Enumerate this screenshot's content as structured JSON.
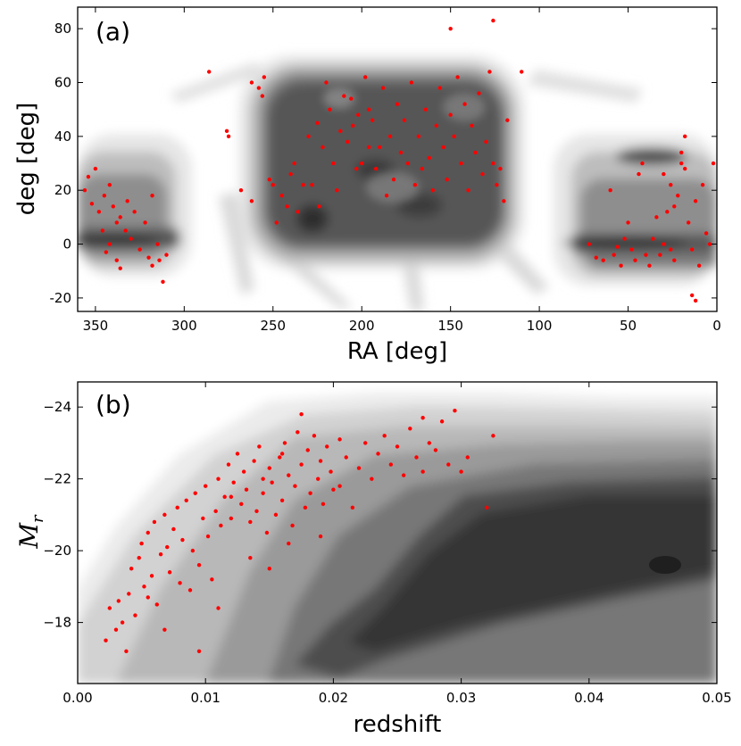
{
  "chart_data": [
    {
      "type": "scatter",
      "panel_label": "(a)",
      "xlabel": "RA [deg]",
      "ylabel": "deg [deg]",
      "xlim": [
        360,
        0
      ],
      "ylim": [
        -25,
        88
      ],
      "xticks": [
        350,
        300,
        250,
        200,
        150,
        100,
        50,
        0
      ],
      "yticks": [
        -20,
        0,
        20,
        40,
        60,
        80
      ],
      "background": "grayscale filled density contours of survey galaxies",
      "points_color": "#ff0000",
      "points": [
        [
          352,
          15
        ],
        [
          348,
          12
        ],
        [
          345,
          18
        ],
        [
          342,
          22
        ],
        [
          340,
          14
        ],
        [
          338,
          8
        ],
        [
          336,
          10
        ],
        [
          333,
          5
        ],
        [
          330,
          2
        ],
        [
          325,
          -2
        ],
        [
          320,
          -5
        ],
        [
          318,
          -8
        ],
        [
          315,
          0
        ],
        [
          312,
          -14
        ],
        [
          356,
          20
        ],
        [
          354,
          25
        ],
        [
          350,
          28
        ],
        [
          346,
          5
        ],
        [
          344,
          -3
        ],
        [
          342,
          0
        ],
        [
          338,
          -6
        ],
        [
          336,
          -9
        ],
        [
          332,
          16
        ],
        [
          328,
          12
        ],
        [
          322,
          8
        ],
        [
          318,
          18
        ],
        [
          314,
          -6
        ],
        [
          310,
          -4
        ],
        [
          286,
          64
        ],
        [
          276,
          42
        ],
        [
          275,
          40
        ],
        [
          262,
          60
        ],
        [
          258,
          58
        ],
        [
          256,
          55
        ],
        [
          255,
          62
        ],
        [
          268,
          20
        ],
        [
          262,
          16
        ],
        [
          250,
          22
        ],
        [
          245,
          18
        ],
        [
          240,
          26
        ],
        [
          236,
          12
        ],
        [
          233,
          22
        ],
        [
          230,
          40
        ],
        [
          225,
          45
        ],
        [
          220,
          60
        ],
        [
          218,
          50
        ],
        [
          216,
          30
        ],
        [
          214,
          20
        ],
        [
          212,
          42
        ],
        [
          210,
          55
        ],
        [
          208,
          38
        ],
        [
          205,
          44
        ],
        [
          203,
          28
        ],
        [
          200,
          30
        ],
        [
          198,
          62
        ],
        [
          196,
          50
        ],
        [
          194,
          46
        ],
        [
          192,
          28
        ],
        [
          190,
          36
        ],
        [
          188,
          58
        ],
        [
          186,
          18
        ],
        [
          184,
          40
        ],
        [
          182,
          24
        ],
        [
          180,
          52
        ],
        [
          178,
          34
        ],
        [
          176,
          46
        ],
        [
          174,
          30
        ],
        [
          172,
          60
        ],
        [
          170,
          22
        ],
        [
          168,
          40
        ],
        [
          166,
          28
        ],
        [
          164,
          50
        ],
        [
          162,
          32
        ],
        [
          160,
          20
        ],
        [
          158,
          44
        ],
        [
          156,
          58
        ],
        [
          154,
          36
        ],
        [
          152,
          24
        ],
        [
          150,
          48
        ],
        [
          148,
          40
        ],
        [
          146,
          62
        ],
        [
          144,
          30
        ],
        [
          142,
          52
        ],
        [
          140,
          20
        ],
        [
          138,
          44
        ],
        [
          136,
          34
        ],
        [
          134,
          56
        ],
        [
          132,
          26
        ],
        [
          130,
          38
        ],
        [
          128,
          64
        ],
        [
          126,
          30
        ],
        [
          124,
          22
        ],
        [
          122,
          28
        ],
        [
          120,
          16
        ],
        [
          118,
          46
        ],
        [
          150,
          80
        ],
        [
          126,
          83
        ],
        [
          110,
          64
        ],
        [
          248,
          8
        ],
        [
          252,
          24
        ],
        [
          242,
          14
        ],
        [
          238,
          30
        ],
        [
          228,
          22
        ],
        [
          224,
          14
        ],
        [
          222,
          36
        ],
        [
          206,
          54
        ],
        [
          202,
          48
        ],
        [
          196,
          36
        ],
        [
          60,
          20
        ],
        [
          56,
          -1
        ],
        [
          52,
          2
        ],
        [
          50,
          8
        ],
        [
          48,
          -2
        ],
        [
          46,
          -6
        ],
        [
          44,
          26
        ],
        [
          42,
          30
        ],
        [
          40,
          -4
        ],
        [
          38,
          -8
        ],
        [
          36,
          2
        ],
        [
          34,
          10
        ],
        [
          32,
          -4
        ],
        [
          30,
          0
        ],
        [
          28,
          12
        ],
        [
          26,
          -2
        ],
        [
          24,
          -6
        ],
        [
          22,
          18
        ],
        [
          20,
          34
        ],
        [
          18,
          40
        ],
        [
          16,
          8
        ],
        [
          14,
          -2
        ],
        [
          12,
          16
        ],
        [
          10,
          -8
        ],
        [
          8,
          22
        ],
        [
          6,
          4
        ],
        [
          4,
          0
        ],
        [
          2,
          30
        ],
        [
          12,
          -21
        ],
        [
          14,
          -19
        ],
        [
          72,
          0
        ],
        [
          68,
          -5
        ],
        [
          64,
          -6
        ],
        [
          58,
          -4
        ],
        [
          54,
          -8
        ],
        [
          30,
          26
        ],
        [
          26,
          22
        ],
        [
          24,
          14
        ],
        [
          20,
          30
        ],
        [
          18,
          28
        ]
      ]
    },
    {
      "type": "scatter",
      "panel_label": "(b)",
      "xlabel": "redshift",
      "ylabel": "M_r",
      "ylabel_base": "M",
      "ylabel_sub": "r",
      "xlim": [
        0.0,
        0.05
      ],
      "ylim": [
        -16.3,
        -24.7
      ],
      "xticks": [
        "0.00",
        "0.01",
        "0.02",
        "0.03",
        "0.04",
        "0.05"
      ],
      "yticks": [
        "−18",
        "−20",
        "−22",
        "−24"
      ],
      "background": "grayscale filled density contours of survey galaxies",
      "points_color": "#ff0000",
      "points": [
        [
          0.0022,
          -17.5
        ],
        [
          0.0025,
          -18.4
        ],
        [
          0.003,
          -17.8
        ],
        [
          0.0032,
          -18.6
        ],
        [
          0.0035,
          -18.0
        ],
        [
          0.0038,
          -17.2
        ],
        [
          0.004,
          -18.8
        ],
        [
          0.0042,
          -19.5
        ],
        [
          0.0045,
          -18.2
        ],
        [
          0.0048,
          -19.8
        ],
        [
          0.005,
          -20.2
        ],
        [
          0.0052,
          -19.0
        ],
        [
          0.0055,
          -20.5
        ],
        [
          0.0058,
          -19.3
        ],
        [
          0.006,
          -20.8
        ],
        [
          0.0062,
          -18.5
        ],
        [
          0.0065,
          -19.9
        ],
        [
          0.0068,
          -21.0
        ],
        [
          0.007,
          -20.1
        ],
        [
          0.0072,
          -19.4
        ],
        [
          0.0075,
          -20.6
        ],
        [
          0.0078,
          -21.2
        ],
        [
          0.008,
          -19.1
        ],
        [
          0.0082,
          -20.3
        ],
        [
          0.0085,
          -21.4
        ],
        [
          0.0088,
          -18.9
        ],
        [
          0.009,
          -20.0
        ],
        [
          0.0092,
          -21.6
        ],
        [
          0.0095,
          -19.6
        ],
        [
          0.0098,
          -20.9
        ],
        [
          0.01,
          -21.8
        ],
        [
          0.0102,
          -20.4
        ],
        [
          0.0105,
          -19.2
        ],
        [
          0.0108,
          -21.1
        ],
        [
          0.011,
          -22.0
        ],
        [
          0.0112,
          -20.7
        ],
        [
          0.0115,
          -21.5
        ],
        [
          0.0118,
          -22.4
        ],
        [
          0.012,
          -20.9
        ],
        [
          0.0122,
          -21.9
        ],
        [
          0.0125,
          -22.7
        ],
        [
          0.0128,
          -21.3
        ],
        [
          0.013,
          -22.2
        ],
        [
          0.0132,
          -21.7
        ],
        [
          0.0135,
          -20.8
        ],
        [
          0.0138,
          -22.5
        ],
        [
          0.014,
          -21.1
        ],
        [
          0.0142,
          -22.9
        ],
        [
          0.0145,
          -21.6
        ],
        [
          0.0148,
          -20.5
        ],
        [
          0.015,
          -22.3
        ],
        [
          0.0152,
          -21.9
        ],
        [
          0.0155,
          -21.0
        ],
        [
          0.0158,
          -22.6
        ],
        [
          0.016,
          -21.4
        ],
        [
          0.0162,
          -23.0
        ],
        [
          0.0165,
          -22.1
        ],
        [
          0.0168,
          -20.7
        ],
        [
          0.017,
          -21.8
        ],
        [
          0.0172,
          -23.3
        ],
        [
          0.0175,
          -22.4
        ],
        [
          0.0178,
          -21.2
        ],
        [
          0.018,
          -22.8
        ],
        [
          0.0182,
          -21.6
        ],
        [
          0.0185,
          -23.2
        ],
        [
          0.0188,
          -22.0
        ],
        [
          0.019,
          -22.5
        ],
        [
          0.0192,
          -21.3
        ],
        [
          0.0195,
          -22.9
        ],
        [
          0.0198,
          -22.2
        ],
        [
          0.02,
          -21.7
        ],
        [
          0.0205,
          -23.1
        ],
        [
          0.021,
          -22.6
        ],
        [
          0.0215,
          -21.2
        ],
        [
          0.022,
          -22.3
        ],
        [
          0.0225,
          -23.0
        ],
        [
          0.023,
          -22.0
        ],
        [
          0.0235,
          -22.7
        ],
        [
          0.024,
          -23.2
        ],
        [
          0.0245,
          -22.4
        ],
        [
          0.025,
          -22.9
        ],
        [
          0.0255,
          -22.1
        ],
        [
          0.026,
          -23.4
        ],
        [
          0.0265,
          -22.6
        ],
        [
          0.027,
          -22.2
        ],
        [
          0.0275,
          -23.0
        ],
        [
          0.028,
          -22.8
        ],
        [
          0.0285,
          -23.6
        ],
        [
          0.029,
          -22.4
        ],
        [
          0.0295,
          -23.9
        ],
        [
          0.03,
          -22.2
        ],
        [
          0.0305,
          -22.6
        ],
        [
          0.032,
          -21.2
        ],
        [
          0.0325,
          -23.2
        ],
        [
          0.0175,
          -23.8
        ],
        [
          0.027,
          -23.7
        ],
        [
          0.0095,
          -17.2
        ],
        [
          0.0068,
          -17.8
        ],
        [
          0.0055,
          -18.7
        ],
        [
          0.011,
          -18.4
        ],
        [
          0.0135,
          -19.8
        ],
        [
          0.015,
          -19.5
        ],
        [
          0.0165,
          -20.2
        ],
        [
          0.019,
          -20.4
        ],
        [
          0.012,
          -21.5
        ],
        [
          0.0145,
          -22.0
        ],
        [
          0.016,
          -22.7
        ],
        [
          0.0205,
          -21.8
        ]
      ]
    }
  ]
}
